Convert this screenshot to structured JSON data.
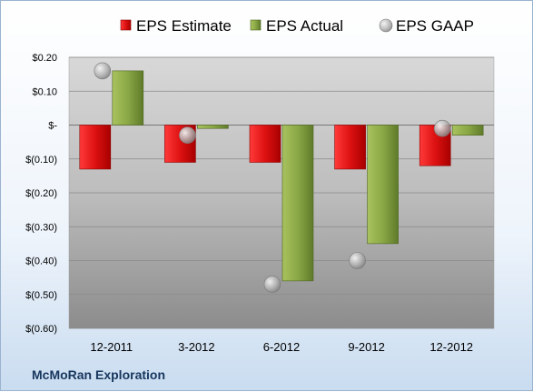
{
  "chart_data": {
    "type": "bar",
    "categories": [
      "12-2011",
      "3-2012",
      "6-2012",
      "9-2012",
      "12-2012"
    ],
    "series": [
      {
        "name": "EPS Estimate",
        "kind": "bar",
        "color": "#cc1111",
        "values": [
          -0.13,
          -0.11,
          -0.11,
          -0.13,
          -0.12
        ]
      },
      {
        "name": "EPS Actual",
        "kind": "bar",
        "color": "#7f9a3c",
        "values": [
          0.16,
          -0.01,
          -0.46,
          -0.35,
          -0.03
        ]
      },
      {
        "name": "EPS GAAP",
        "kind": "marker",
        "color": "#b0b0b0",
        "values": [
          0.16,
          -0.03,
          -0.47,
          -0.4,
          -0.01
        ]
      }
    ],
    "ylim": [
      -0.6,
      0.2
    ],
    "yticks": [
      0.2,
      0.1,
      0.0,
      -0.1,
      -0.2,
      -0.3,
      -0.4,
      -0.5,
      -0.6
    ],
    "ytick_labels": [
      "$0.20",
      "$0.10",
      "$-",
      "$(0.10)",
      "$(0.20)",
      "$(0.30)",
      "$(0.40)",
      "$(0.50)",
      "$(0.60)"
    ],
    "grid": true,
    "legend": "top"
  },
  "company_name": "McMoRan Exploration"
}
